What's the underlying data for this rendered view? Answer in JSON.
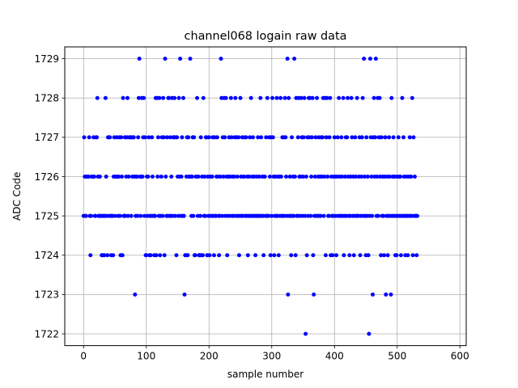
{
  "chart_data": {
    "type": "scatter",
    "title": "channel068 logain raw data",
    "xlabel": "sample number",
    "ylabel": "ADC Code",
    "xlim": [
      -30,
      610
    ],
    "ylim": [
      1721.7,
      1729.3
    ],
    "xticks": [
      0,
      100,
      200,
      300,
      400,
      500,
      600
    ],
    "yticks": [
      1722,
      1723,
      1724,
      1725,
      1726,
      1727,
      1728,
      1729
    ],
    "grid": true,
    "marker_color": "#0000ff",
    "series": [
      {
        "values": [
          1725,
          1727,
          1726,
          1725,
          1725,
          1726,
          1726,
          1726,
          1726,
          1727,
          1725,
          1724,
          1725,
          1726,
          1726,
          1726,
          1727,
          1726,
          1725,
          1725,
          1727,
          1727,
          1728,
          1726,
          1725,
          1725,
          1726,
          1725,
          1725,
          1724,
          1724,
          1725,
          1725,
          1724,
          1725,
          1728,
          1726,
          1725,
          1724,
          1727,
          1727,
          1725,
          1727,
          1725,
          1724,
          1725,
          1725,
          1724,
          1726,
          1727,
          1725,
          1726,
          1726,
          1727,
          1726,
          1725,
          1726,
          1727,
          1725,
          1724,
          1727,
          1726,
          1724,
          1728,
          1725,
          1725,
          1727,
          1725,
          1726,
          1727,
          1728,
          1725,
          1726,
          1727,
          1727,
          1727,
          1725,
          1727,
          1726,
          1727,
          1727,
          1726,
          1723,
          1725,
          1726,
          1726,
          1725,
          1727,
          1728,
          1729,
          1726,
          1725,
          1726,
          1728,
          1726,
          1727,
          1728,
          1725,
          1727,
          1724,
          1724,
          1726,
          1725,
          1726,
          1727,
          1724,
          1725,
          1724,
          1725,
          1727,
          1726,
          1725,
          1725,
          1724,
          1725,
          1728,
          1724,
          1728,
          1726,
          1727,
          1725,
          1728,
          1724,
          1725,
          1726,
          1727,
          1725,
          1728,
          1727,
          1724,
          1729,
          1726,
          1725,
          1727,
          1725,
          1728,
          1728,
          1725,
          1727,
          1725,
          1726,
          1728,
          1725,
          1727,
          1727,
          1728,
          1725,
          1727,
          1724,
          1727,
          1726,
          1725,
          1728,
          1726,
          1729,
          1725,
          1726,
          1727,
          1725,
          1728,
          1725,
          1723,
          1724,
          1724,
          1726,
          1727,
          1724,
          1727,
          1726,
          1726,
          1729,
          1726,
          1725,
          1726,
          1727,
          1725,
          1727,
          1724,
          1724,
          1726,
          1726,
          1728,
          1725,
          1726,
          1724,
          1724,
          1725,
          1727,
          1724,
          1726,
          1724,
          1728,
          1725,
          1726,
          1725,
          1727,
          1727,
          1724,
          1726,
          1725,
          1727,
          1724,
          1726,
          1725,
          1725,
          1726,
          1727,
          1725,
          1724,
          1727,
          1725,
          1725,
          1726,
          1727,
          1726,
          1725,
          1724,
          1725,
          1726,
          1729,
          1728,
          1725,
          1727,
          1726,
          1728,
          1727,
          1725,
          1728,
          1726,
          1724,
          1725,
          1726,
          1727,
          1726,
          1725,
          1728,
          1727,
          1726,
          1725,
          1725,
          1726,
          1727,
          1728,
          1725,
          1727,
          1726,
          1725,
          1727,
          1724,
          1725,
          1728,
          1726,
          1725,
          1727,
          1725,
          1726,
          1726,
          1727,
          1725,
          1727,
          1725,
          1726,
          1724,
          1725,
          1726,
          1727,
          1725,
          1728,
          1725,
          1726,
          1727,
          1725,
          1726,
          1725,
          1724,
          1725,
          1726,
          1725,
          1727,
          1725,
          1726,
          1725,
          1728,
          1727,
          1725,
          1726,
          1725,
          1724,
          1726,
          1726,
          1725,
          1727,
          1725,
          1728,
          1725,
          1725,
          1727,
          1726,
          1724,
          1727,
          1725,
          1728,
          1727,
          1726,
          1724,
          1725,
          1726,
          1725,
          1728,
          1725,
          1726,
          1724,
          1726,
          1725,
          1728,
          1726,
          1725,
          1727,
          1725,
          1727,
          1725,
          1728,
          1727,
          1726,
          1725,
          1729,
          1723,
          1728,
          1725,
          1726,
          1725,
          1724,
          1727,
          1725,
          1726,
          1725,
          1729,
          1726,
          1724,
          1728,
          1725,
          1725,
          1727,
          1728,
          1726,
          1725,
          1726,
          1728,
          1727,
          1725,
          1726,
          1727,
          1728,
          1725,
          1722,
          1726,
          1724,
          1727,
          1725,
          1728,
          1727,
          1728,
          1725,
          1726,
          1727,
          1728,
          1724,
          1723,
          1725,
          1726,
          1727,
          1725,
          1728,
          1725,
          1726,
          1727,
          1725,
          1726,
          1725,
          1727,
          1726,
          1727,
          1728,
          1725,
          1726,
          1728,
          1724,
          1727,
          1728,
          1726,
          1725,
          1725,
          1727,
          1728,
          1724,
          1726,
          1725,
          1724,
          1725,
          1726,
          1727,
          1726,
          1725,
          1724,
          1726,
          1727,
          1725,
          1728,
          1726,
          1725,
          1725,
          1727,
          1726,
          1725,
          1728,
          1724,
          1725,
          1726,
          1727,
          1725,
          1727,
          1728,
          1726,
          1725,
          1724,
          1725,
          1726,
          1728,
          1727,
          1725,
          1726,
          1724,
          1725,
          1727,
          1726,
          1725,
          1728,
          1725,
          1725,
          1726,
          1727,
          1724,
          1725,
          1726,
          1727,
          1728,
          1725,
          1729,
          1726,
          1725,
          1724,
          1727,
          1725,
          1726,
          1724,
          1722,
          1725,
          1729,
          1727,
          1726,
          1725,
          1723,
          1727,
          1728,
          1726,
          1727,
          1729,
          1725,
          1726,
          1728,
          1725,
          1727,
          1728,
          1726,
          1724,
          1727,
          1725,
          1726,
          1725,
          1724,
          1726,
          1727,
          1723,
          1725,
          1726,
          1724,
          1725,
          1727,
          1726,
          1725,
          1723,
          1728,
          1725,
          1726,
          1727,
          1725,
          1726,
          1724,
          1725,
          1724,
          1726,
          1725,
          1727,
          1726,
          1725,
          1726,
          1724,
          1725,
          1728,
          1725,
          1727,
          1726,
          1725,
          1724,
          1725,
          1726,
          1725,
          1724,
          1725,
          1726,
          1727,
          1725,
          1726,
          1725,
          1728,
          1724,
          1727,
          1725,
          1726,
          1725,
          1725,
          1724,
          1725
        ]
      }
    ]
  }
}
